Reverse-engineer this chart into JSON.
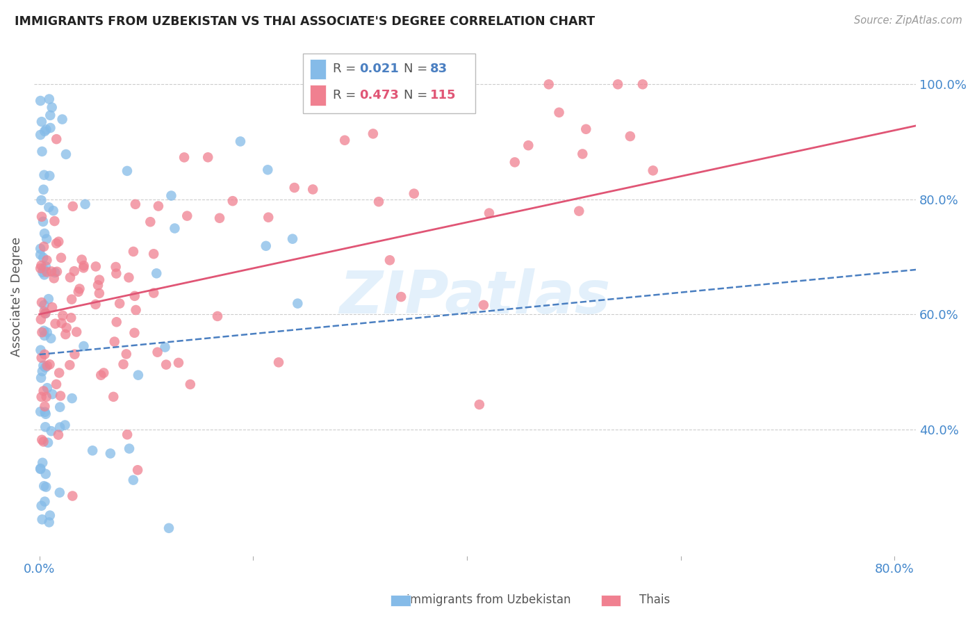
{
  "title": "IMMIGRANTS FROM UZBEKISTAN VS THAI ASSOCIATE'S DEGREE CORRELATION CHART",
  "source": "Source: ZipAtlas.com",
  "ylabel": "Associate's Degree",
  "watermark": "ZIPatlas",
  "legend_uzbekistan": "Immigrants from Uzbekistan",
  "legend_thai": "Thais",
  "r_uzbekistan": "0.021",
  "n_uzbekistan": "83",
  "r_thai": "0.473",
  "n_thai": "115",
  "color_uzbekistan": "#85BBE8",
  "color_thai": "#F08090",
  "trendline_uzbekistan_color": "#4a7fc1",
  "trendline_thai_color": "#E05575",
  "background_color": "#ffffff",
  "grid_color": "#cccccc",
  "title_color": "#222222",
  "axis_label_color": "#4488cc",
  "xmin": -0.005,
  "xmax": 0.82,
  "ymin": 0.18,
  "ymax": 1.08,
  "ytick_vals": [
    0.4,
    0.6,
    0.8,
    1.0
  ],
  "ytick_labels": [
    "40.0%",
    "60.0%",
    "80.0%",
    "100.0%"
  ],
  "xtick_vals": [
    0.0,
    0.2,
    0.4,
    0.6,
    0.8
  ],
  "xtick_labels": [
    "0.0%",
    "",
    "",
    "",
    "80.0%"
  ]
}
